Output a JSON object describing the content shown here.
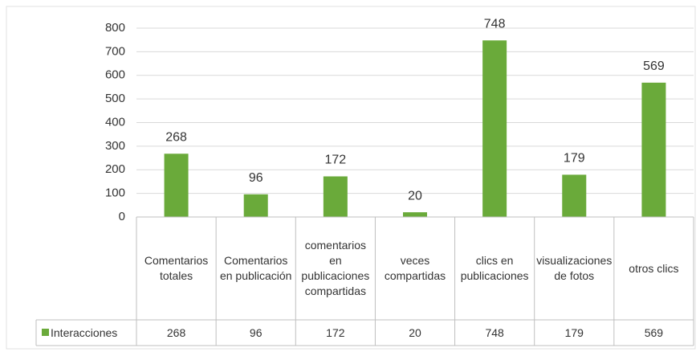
{
  "chart_data": {
    "type": "bar",
    "categories": [
      "Comentarios totales",
      "Comentarios en publicación",
      "comentarios en publicaciones compartidas",
      "veces compartidas",
      "clics en publicaciones",
      "visualizaciones de fotos",
      "otros clics"
    ],
    "series": [
      {
        "name": "Interacciones",
        "color": "#6aaa3a",
        "values": [
          268,
          96,
          172,
          20,
          748,
          179,
          569
        ]
      }
    ],
    "ylim": [
      0,
      800
    ],
    "yticks": [
      0,
      100,
      200,
      300,
      400,
      500,
      600,
      700,
      800
    ],
    "grid": true,
    "data_table": true
  }
}
